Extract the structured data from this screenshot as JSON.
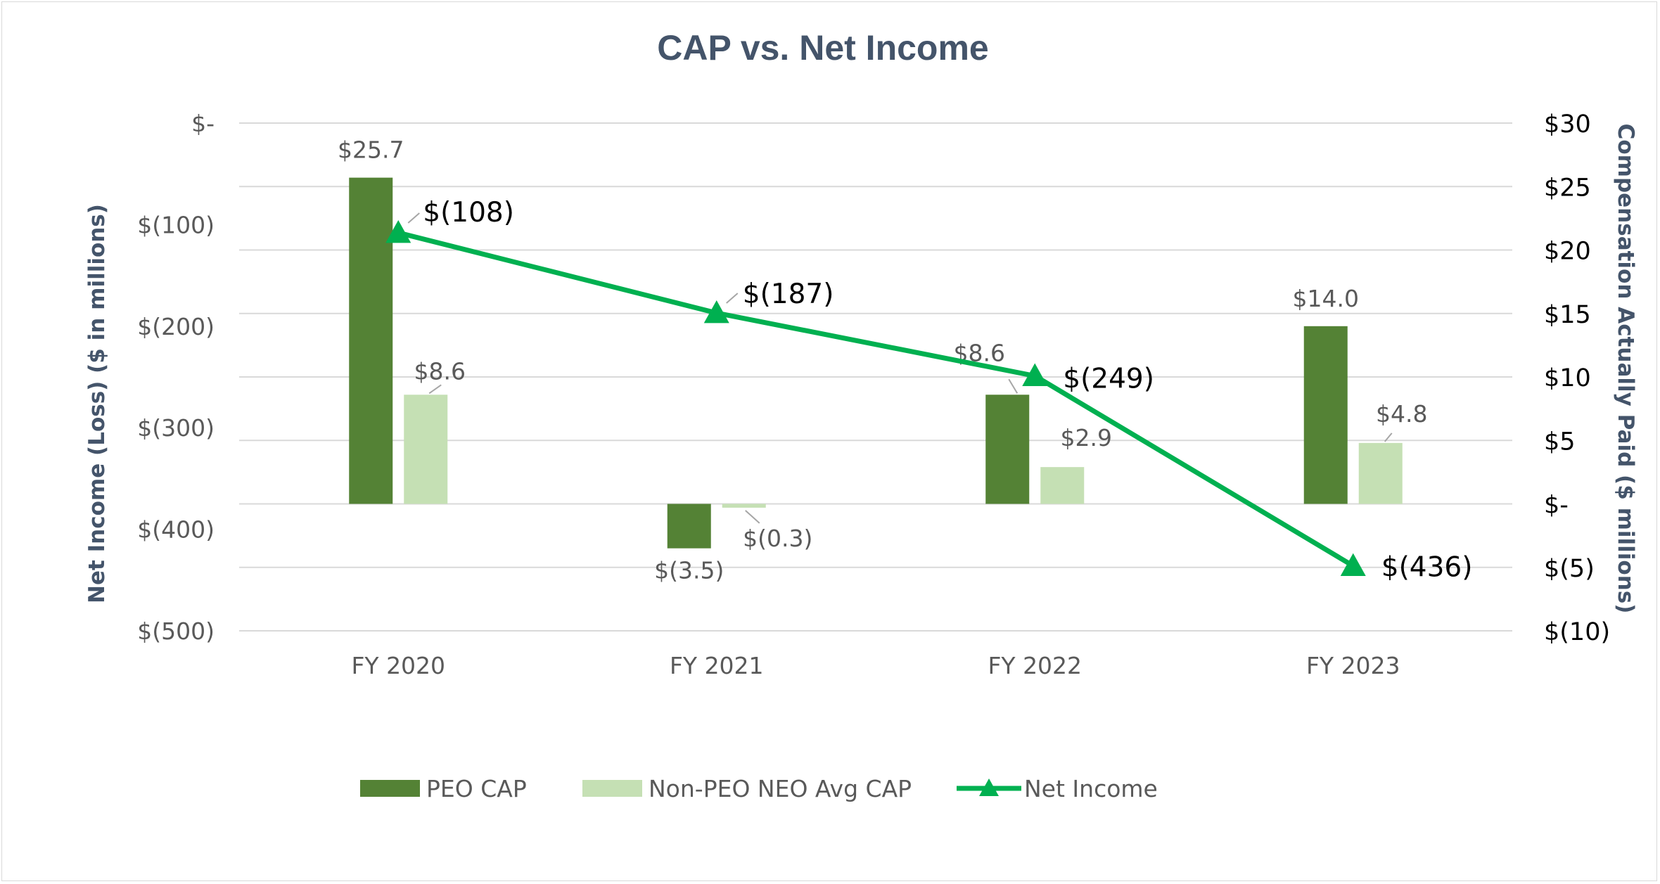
{
  "chart_data": {
    "type": "bar+line",
    "title": "CAP vs. Net Income",
    "categories": [
      "FY 2020",
      "FY 2021",
      "FY 2022",
      "FY 2023"
    ],
    "left_axis": {
      "label": "Net Income (Loss) ($ in millions)",
      "range": [
        -500,
        0
      ],
      "ticks": [
        0,
        -100,
        -200,
        -300,
        -400,
        -500
      ],
      "tick_labels": [
        "$-",
        "$(100)",
        "$(200)",
        "$(300)",
        "$(400)",
        "$(500)"
      ]
    },
    "right_axis": {
      "label": "Compensation Actually Paid ($ millions)",
      "range": [
        -10,
        30
      ],
      "ticks": [
        30,
        25,
        20,
        15,
        10,
        5,
        0,
        -5,
        -10
      ],
      "tick_labels": [
        "$30",
        "$25",
        "$20",
        "$15",
        "$10",
        "$5",
        "$-",
        "$(5)",
        "$(10)"
      ]
    },
    "series": [
      {
        "name": "PEO CAP",
        "type": "bar",
        "axis": "right",
        "color": "#548235",
        "values": [
          25.7,
          -3.5,
          8.6,
          14.0
        ],
        "labels": [
          "$25.7",
          "$(3.5)",
          "$8.6",
          "$14.0"
        ]
      },
      {
        "name": "Non-PEO NEO Avg CAP",
        "type": "bar",
        "axis": "right",
        "color": "#c5e0b4",
        "values": [
          8.6,
          -0.3,
          2.9,
          4.8
        ],
        "labels": [
          "$8.6",
          "$(0.3)",
          "$2.9",
          "$4.8"
        ]
      },
      {
        "name": "Net Income",
        "type": "line",
        "axis": "left",
        "color": "#00b050",
        "values": [
          -108,
          -187,
          -249,
          -436
        ],
        "labels": [
          "$(108)",
          "$(187)",
          "$(249)",
          "$(436)"
        ]
      }
    ],
    "legend_position": "bottom",
    "grid": true
  }
}
